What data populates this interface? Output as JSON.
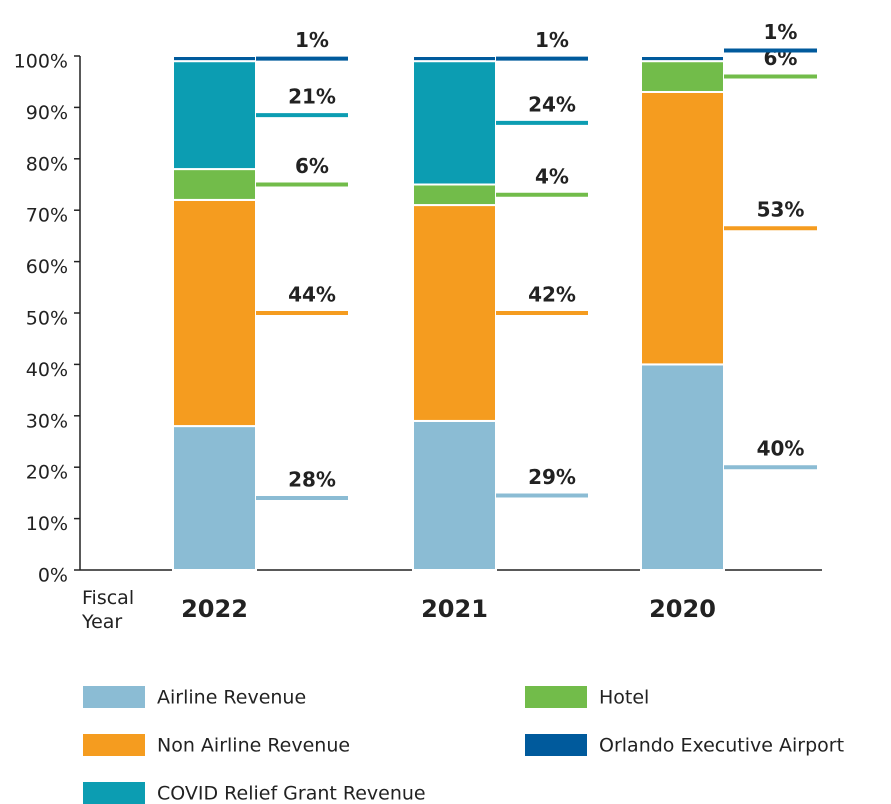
{
  "chart_data": {
    "type": "stacked-bar",
    "categories": [
      "2022",
      "2021",
      "2020"
    ],
    "x_label": "Fiscal Year",
    "ylim": [
      0,
      100
    ],
    "yticks": [
      {
        "value": 0,
        "label": "0%"
      },
      {
        "value": 10,
        "label": "10%"
      },
      {
        "value": 20,
        "label": "20%"
      },
      {
        "value": 30,
        "label": "30%"
      },
      {
        "value": 40,
        "label": "40%"
      },
      {
        "value": 50,
        "label": "50%"
      },
      {
        "value": 60,
        "label": "60%"
      },
      {
        "value": 70,
        "label": "70%"
      },
      {
        "value": 80,
        "label": "80%"
      },
      {
        "value": 90,
        "label": "90%"
      },
      {
        "value": 100,
        "label": "100%"
      }
    ],
    "series": [
      {
        "name": "Airline Revenue",
        "color": "#8bbcd4",
        "values": [
          28,
          29,
          40
        ],
        "value_labels": [
          "28%",
          "29%",
          "40%"
        ]
      },
      {
        "name": "Non Airline Revenue",
        "color": "#f59c1f",
        "values": [
          44,
          42,
          53
        ],
        "value_labels": [
          "44%",
          "42%",
          "53%"
        ]
      },
      {
        "name": "Hotel",
        "color": "#72bc4a",
        "values": [
          6,
          4,
          6
        ],
        "value_labels": [
          "6%",
          "4%",
          "6%"
        ]
      },
      {
        "name": "COVID Relief Grant Revenue",
        "color": "#0c9db2",
        "values": [
          21,
          24,
          null
        ],
        "value_labels": [
          "21%",
          "24%",
          null
        ]
      },
      {
        "name": "Orlando Executive Airport",
        "color": "#005a9c",
        "values": [
          1,
          1,
          1
        ],
        "value_labels": [
          "1%",
          "1%",
          "1%"
        ]
      }
    ]
  }
}
